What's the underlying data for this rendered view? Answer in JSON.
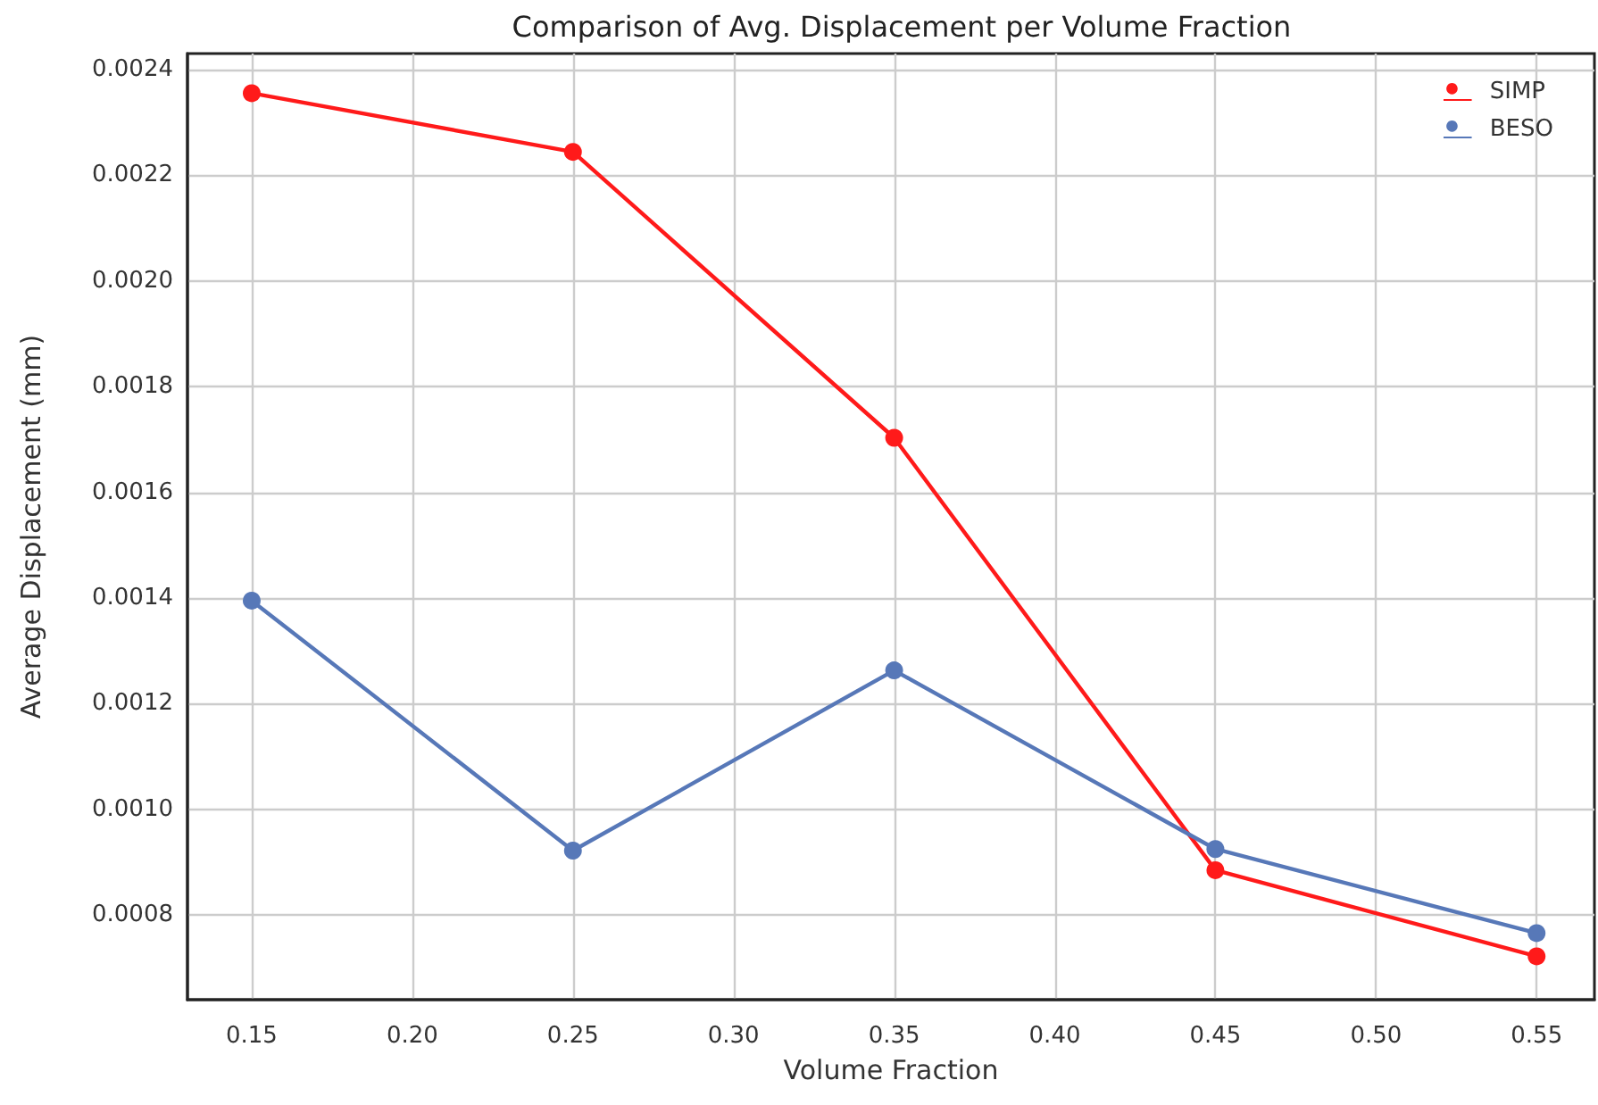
{
  "chart_data": {
    "type": "line",
    "title": "Comparison of Avg. Displacement per Volume Fraction",
    "xlabel": "Volume Fraction",
    "ylabel": "Average Displacement (mm)",
    "x": [
      0.15,
      0.25,
      0.35,
      0.45,
      0.55
    ],
    "series": [
      {
        "name": "SIMP",
        "color": "#ff1a1a",
        "values": [
          0.002355,
          0.002244,
          0.001703,
          0.000885,
          0.000722
        ]
      },
      {
        "name": "BESO",
        "color": "#5778b8",
        "values": [
          0.001395,
          0.000922,
          0.001263,
          0.000925,
          0.000766
        ]
      }
    ],
    "xlim": [
      0.13,
      0.568
    ],
    "ylim": [
      0.00064,
      0.00243
    ],
    "xticks": [
      {
        "value": 0.15,
        "label": "0.15"
      },
      {
        "value": 0.2,
        "label": "0.20"
      },
      {
        "value": 0.25,
        "label": "0.25"
      },
      {
        "value": 0.3,
        "label": "0.30"
      },
      {
        "value": 0.35,
        "label": "0.35"
      },
      {
        "value": 0.4,
        "label": "0.40"
      },
      {
        "value": 0.45,
        "label": "0.45"
      },
      {
        "value": 0.5,
        "label": "0.50"
      },
      {
        "value": 0.55,
        "label": "0.55"
      }
    ],
    "yticks": [
      {
        "value": 0.0008,
        "label": "0.0008"
      },
      {
        "value": 0.001,
        "label": "0.0010"
      },
      {
        "value": 0.0012,
        "label": "0.0012"
      },
      {
        "value": 0.0014,
        "label": "0.0014"
      },
      {
        "value": 0.0016,
        "label": "0.0016"
      },
      {
        "value": 0.0018,
        "label": "0.0018"
      },
      {
        "value": 0.002,
        "label": "0.0020"
      },
      {
        "value": 0.0022,
        "label": "0.0022"
      },
      {
        "value": 0.0024,
        "label": "0.0024"
      }
    ],
    "grid": true,
    "legend": "top right",
    "marker": "circle",
    "line_style": "solid"
  }
}
